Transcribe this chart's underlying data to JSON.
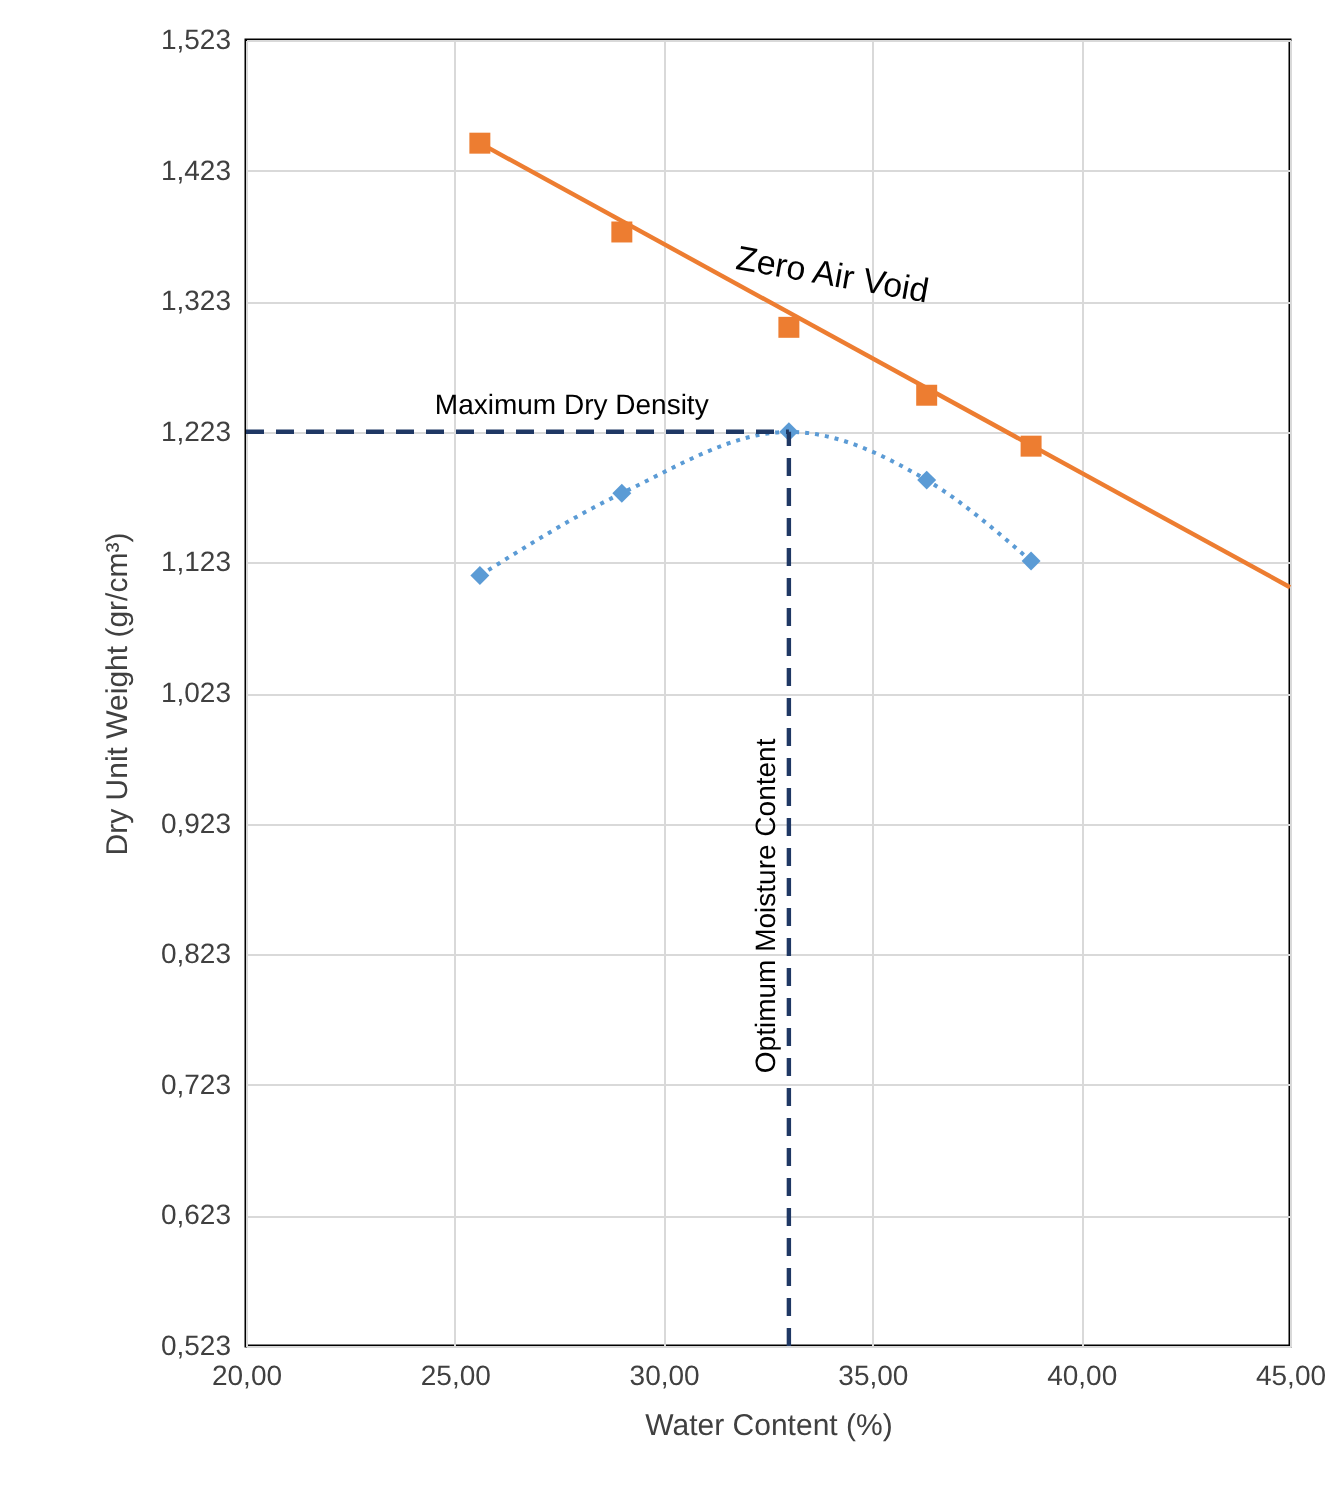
{
  "chart_data": {
    "type": "line",
    "xlabel": "Water Content (%)",
    "ylabel": "Dry Unit Weight (gr/cm³)",
    "xlim": [
      20,
      45
    ],
    "ylim": [
      0.523,
      1.523
    ],
    "xticks": [
      {
        "value": 20,
        "label": "20,00"
      },
      {
        "value": 25,
        "label": "25,00"
      },
      {
        "value": 30,
        "label": "30,00"
      },
      {
        "value": 35,
        "label": "35,00"
      },
      {
        "value": 40,
        "label": "40,00"
      },
      {
        "value": 45,
        "label": "45,00"
      }
    ],
    "yticks": [
      {
        "value": 0.523,
        "label": "0,523"
      },
      {
        "value": 0.623,
        "label": "0,623"
      },
      {
        "value": 0.723,
        "label": "0,723"
      },
      {
        "value": 0.823,
        "label": "0,823"
      },
      {
        "value": 0.923,
        "label": "0,923"
      },
      {
        "value": 1.023,
        "label": "1,023"
      },
      {
        "value": 1.123,
        "label": "1,123"
      },
      {
        "value": 1.223,
        "label": "1,223"
      },
      {
        "value": 1.323,
        "label": "1,323"
      },
      {
        "value": 1.423,
        "label": "1,423"
      },
      {
        "value": 1.523,
        "label": "1,523"
      }
    ],
    "grid": true,
    "series": [
      {
        "color": "#ed7d31",
        "x": [
          25.6,
          45
        ],
        "values": [
          1.444,
          1.104
        ],
        "marker": "none",
        "line_style": "solid"
      },
      {
        "type": "scatter",
        "color": "#ed7d31",
        "x": [
          25.6,
          29.0,
          33.0,
          36.3,
          38.8
        ],
        "values": [
          1.444,
          1.376,
          1.303,
          1.251,
          1.212
        ],
        "marker": "square"
      },
      {
        "color": "#5b9bd5",
        "x": [
          25.6,
          29.0,
          33.0,
          36.3,
          38.8
        ],
        "values": [
          1.113,
          1.176,
          1.223,
          1.186,
          1.124
        ],
        "marker": "diamond",
        "line_style": "dotted"
      },
      {
        "color": "#1f3864",
        "x": [
          20,
          33.0
        ],
        "values": [
          1.223,
          1.223
        ],
        "marker": "none",
        "line_style": "dashed"
      },
      {
        "color": "#1f3864",
        "x": [
          33.0,
          33.0
        ],
        "values": [
          0.523,
          1.223
        ],
        "marker": "none",
        "line_style": "dashed"
      }
    ],
    "annotations": [
      "Zero Air Void",
      "Maximum Dry Density",
      {
        "text": "Optimum Moisture Content",
        "x": 32.8,
        "y": 0.86
      }
    ]
  }
}
